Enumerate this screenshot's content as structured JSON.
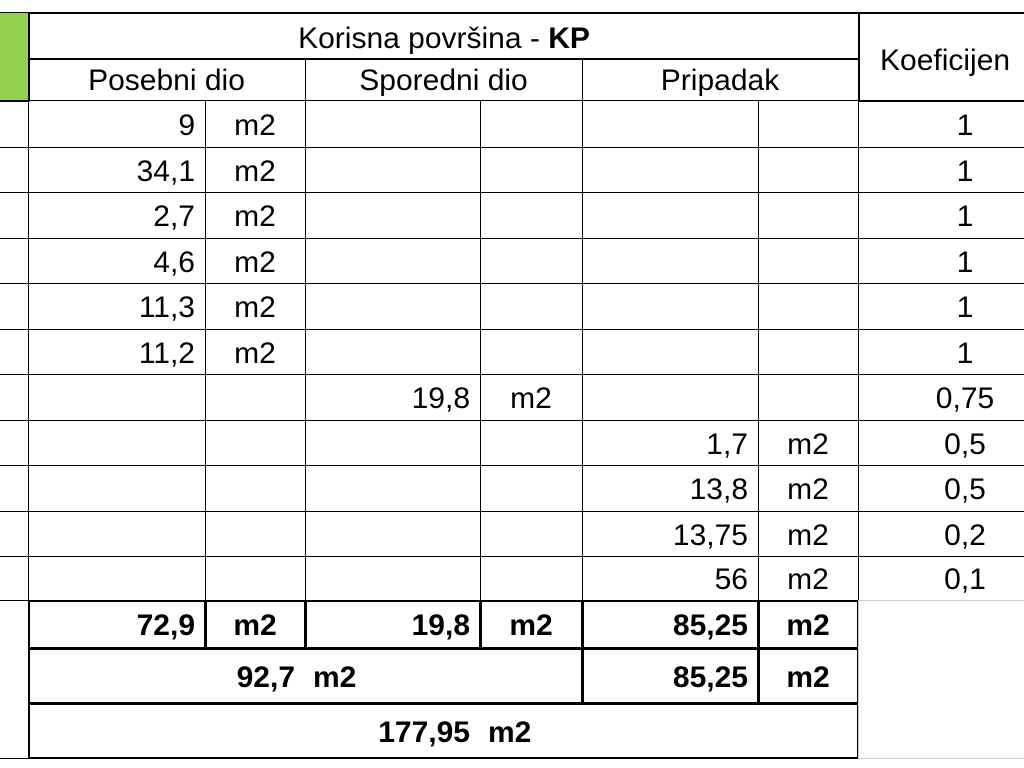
{
  "header": {
    "title": "Korisna površina - ",
    "title_bold": "KP",
    "coefficient": "Koeficijen",
    "groups": [
      "Posebni dio",
      "Sporedni dio",
      "Pripadak"
    ]
  },
  "rows": [
    {
      "posebni": {
        "area": "9",
        "unit": "m2"
      },
      "coefficient": "1"
    },
    {
      "posebni": {
        "area": "34,1",
        "unit": "m2"
      },
      "coefficient": "1"
    },
    {
      "posebni": {
        "area": "2,7",
        "unit": "m2"
      },
      "coefficient": "1"
    },
    {
      "posebni": {
        "area": "4,6",
        "unit": "m2"
      },
      "coefficient": "1"
    },
    {
      "posebni": {
        "area": "11,3",
        "unit": "m2"
      },
      "coefficient": "1"
    },
    {
      "posebni": {
        "area": "11,2",
        "unit": "m2"
      },
      "coefficient": "1"
    },
    {
      "sporedni": {
        "area": "19,8",
        "unit": "m2"
      },
      "coefficient": "0,75"
    },
    {
      "pripadak": {
        "area": "1,7",
        "unit": "m2"
      },
      "coefficient": "0,5"
    },
    {
      "pripadak": {
        "area": "13,8",
        "unit": "m2"
      },
      "coefficient": "0,5"
    },
    {
      "pripadak": {
        "area": "13,75",
        "unit": "m2"
      },
      "coefficient": "0,2"
    },
    {
      "pripadak": {
        "area": "56",
        "unit": "m2"
      },
      "coefficient": "0,1"
    }
  ],
  "totals": {
    "row1": {
      "posebni": {
        "area": "72,9",
        "unit": "m2"
      },
      "sporedni": {
        "area": "19,8",
        "unit": "m2"
      },
      "pripadak": {
        "area": "85,25",
        "unit": "m2"
      }
    },
    "row2": {
      "posebni_sporedni": {
        "area": "92,7",
        "unit": "m2"
      },
      "pripadak": {
        "area": "85,25",
        "unit": "m2"
      }
    },
    "row3": {
      "area": "177,95",
      "unit": "m2"
    }
  }
}
